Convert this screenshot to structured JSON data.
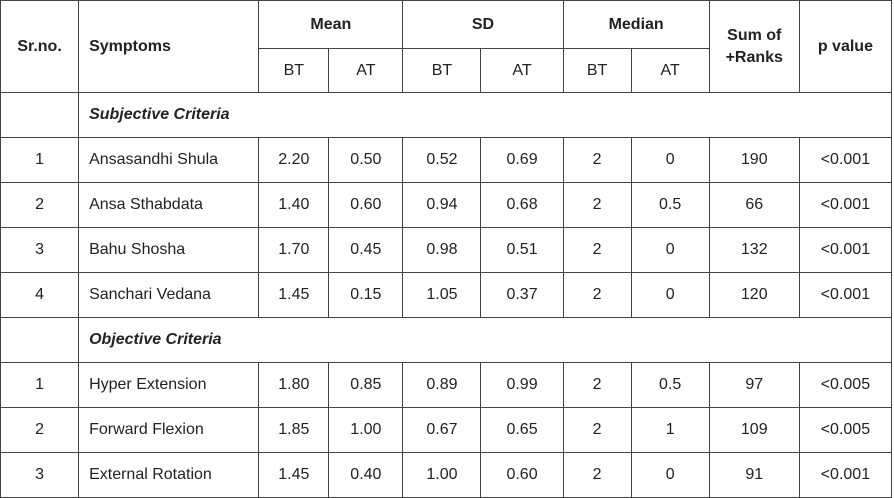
{
  "table": {
    "header": {
      "sr": "Sr.no.",
      "symptoms": "Symptoms",
      "groups": [
        "Mean",
        "SD",
        "Median"
      ],
      "sub": [
        "BT",
        "AT",
        "BT",
        "AT",
        "BT",
        "AT"
      ],
      "sum": [
        "Sum of",
        "+Ranks"
      ],
      "p": "p value"
    },
    "sections": [
      {
        "title": "Subjective Criteria",
        "rows": [
          [
            "1",
            "Ansasandhi Shula",
            "2.20",
            "0.50",
            "0.52",
            "0.69",
            "2",
            "0",
            "190",
            "<0.001"
          ],
          [
            "2",
            "Ansa Sthabdata",
            "1.40",
            "0.60",
            "0.94",
            "0.68",
            "2",
            "0.5",
            "66",
            "<0.001"
          ],
          [
            "3",
            "Bahu Shosha",
            "1.70",
            "0.45",
            "0.98",
            "0.51",
            "2",
            "0",
            "132",
            "<0.001"
          ],
          [
            "4",
            "Sanchari Vedana",
            "1.45",
            "0.15",
            "1.05",
            "0.37",
            "2",
            "0",
            "120",
            "<0.001"
          ]
        ]
      },
      {
        "title": "Objective Criteria",
        "rows": [
          [
            "1",
            "Hyper Extension",
            "1.80",
            "0.85",
            "0.89",
            "0.99",
            "2",
            "0.5",
            "97",
            "<0.005"
          ],
          [
            "2",
            "Forward Flexion",
            "1.85",
            "1.00",
            "0.67",
            "0.65",
            "2",
            "1",
            "109",
            "<0.005"
          ],
          [
            "3",
            "External Rotation",
            "1.45",
            "0.40",
            "1.00",
            "0.60",
            "2",
            "0",
            "91",
            "<0.001"
          ]
        ]
      }
    ]
  }
}
